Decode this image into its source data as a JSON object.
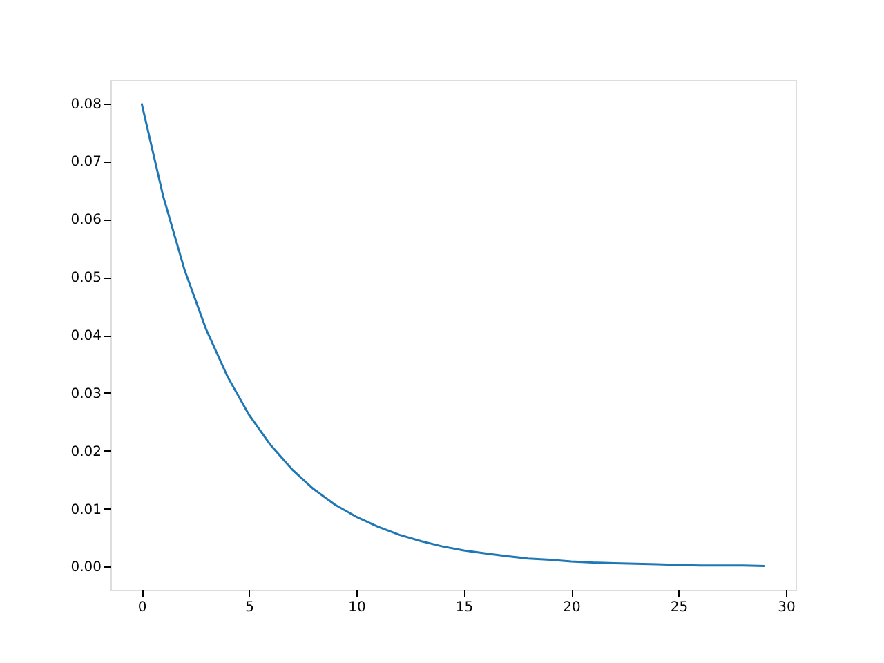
{
  "chart_data": {
    "type": "line",
    "x": [
      0,
      1,
      2,
      3,
      4,
      5,
      6,
      7,
      8,
      9,
      10,
      11,
      12,
      13,
      14,
      15,
      16,
      17,
      18,
      19,
      20,
      21,
      22,
      23,
      24,
      25,
      26,
      27,
      28,
      29
    ],
    "series": [
      {
        "color": "#1f77b4",
        "values": [
          0.08,
          0.064,
          0.0512,
          0.041,
          0.0328,
          0.0262,
          0.021,
          0.0168,
          0.0134,
          0.0107,
          0.0086,
          0.0069,
          0.0055,
          0.0044,
          0.0035,
          0.0028,
          0.0023,
          0.0018,
          0.0014,
          0.0012,
          0.0009,
          0.0007,
          0.0006,
          0.0005,
          0.0004,
          0.0003,
          0.0002,
          0.0002,
          0.0002,
          0.0001
        ]
      }
    ],
    "xlim": [
      -1.45,
      30.45
    ],
    "xticks": [
      0,
      5,
      10,
      15,
      20,
      25,
      30
    ],
    "ylim": [
      -0.004,
      0.084
    ],
    "yticks": [
      {
        "value": 0,
        "label": "0.00"
      },
      {
        "value": 0.01,
        "label": "0.01"
      },
      {
        "value": 0.02,
        "label": "0.02"
      },
      {
        "value": 0.03,
        "label": "0.03"
      },
      {
        "value": 0.04,
        "label": "0.04"
      },
      {
        "value": 0.05,
        "label": "0.05"
      },
      {
        "value": 0.06,
        "label": "0.06"
      },
      {
        "value": 0.07,
        "label": "0.07"
      },
      {
        "value": 0.08,
        "label": "0.08"
      }
    ],
    "grid": false,
    "marker": "none",
    "line_style": "solid"
  }
}
